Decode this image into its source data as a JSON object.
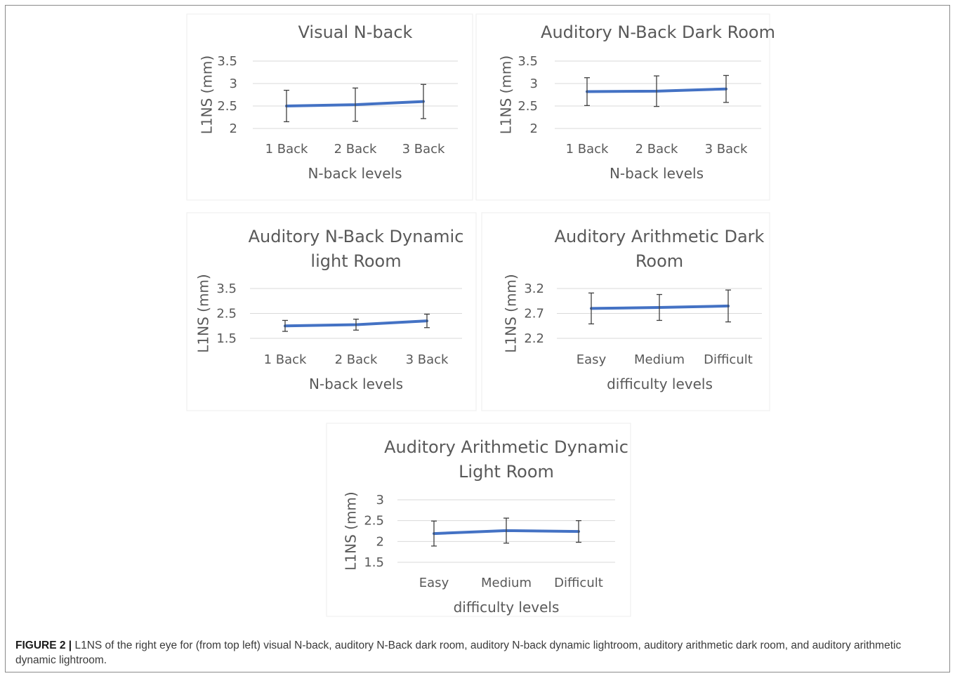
{
  "chart_data": [
    {
      "type": "line",
      "title": [
        "Visual N-back"
      ],
      "xlabel": "N-back levels",
      "ylabel": "L1NS (mm)",
      "categories": [
        "1 Back",
        "2 Back",
        "3 Back"
      ],
      "values": [
        2.5,
        2.53,
        2.6
      ],
      "error": [
        0.35,
        0.37,
        0.38
      ],
      "ylim": [
        2,
        3.5
      ],
      "yticks": [
        "2",
        "2.5",
        "3",
        "3.5"
      ],
      "grid": true
    },
    {
      "type": "line",
      "title": [
        "Auditory N-Back Dark Room"
      ],
      "xlabel": "N-back levels",
      "ylabel": "L1NS (mm)",
      "categories": [
        "1 Back",
        "2 Back",
        "3 Back"
      ],
      "values": [
        2.82,
        2.83,
        2.88
      ],
      "error": [
        0.31,
        0.34,
        0.3
      ],
      "ylim": [
        2,
        3.5
      ],
      "yticks": [
        "2",
        "2.5",
        "3",
        "3.5"
      ],
      "grid": true
    },
    {
      "type": "line",
      "title": [
        "Auditory N-Back Dynamic",
        "light Room"
      ],
      "xlabel": "N-back levels",
      "ylabel": "L1NS (mm)",
      "categories": [
        "1 Back",
        "2 Back",
        "3 Back"
      ],
      "values": [
        2.0,
        2.05,
        2.2
      ],
      "error": [
        0.22,
        0.22,
        0.27
      ],
      "ylim": [
        1.5,
        3.5
      ],
      "yticks": [
        "1.5",
        "2.5",
        "3.5"
      ],
      "grid": true
    },
    {
      "type": "line",
      "title": [
        "Auditory Arithmetic Dark",
        "Room"
      ],
      "xlabel": "difficulty levels",
      "ylabel": "L1NS (mm)",
      "categories": [
        "Easy",
        "Medium",
        "Difficult"
      ],
      "values": [
        2.8,
        2.82,
        2.85
      ],
      "error": [
        0.31,
        0.26,
        0.32
      ],
      "ylim": [
        2.2,
        3.2
      ],
      "yticks": [
        "2.2",
        "2.7",
        "3.2"
      ],
      "grid": true
    },
    {
      "type": "line",
      "title": [
        "Auditory Arithmetic Dynamic",
        "Light Room"
      ],
      "xlabel": "difficulty levels",
      "ylabel": "L1NS (mm)",
      "categories": [
        "Easy",
        "Medium",
        "Difficult"
      ],
      "values": [
        2.19,
        2.26,
        2.24
      ],
      "error": [
        0.3,
        0.3,
        0.26
      ],
      "ylim": [
        1.5,
        3
      ],
      "yticks": [
        "1.5",
        "2",
        "2.5",
        "3"
      ],
      "grid": true
    }
  ],
  "caption": {
    "label": "FIGURE 2 |",
    "text": "L1NS of the right eye for (from top left) visual N-back, auditory N-Back dark room, auditory N-back dynamic lightroom, auditory arithmetic dark room, and auditory arithmetic dynamic lightroom."
  },
  "colors": {
    "series": "#4472c4",
    "text": "#595959",
    "grid": "#d9d9d9",
    "error_bar": "#404040"
  }
}
